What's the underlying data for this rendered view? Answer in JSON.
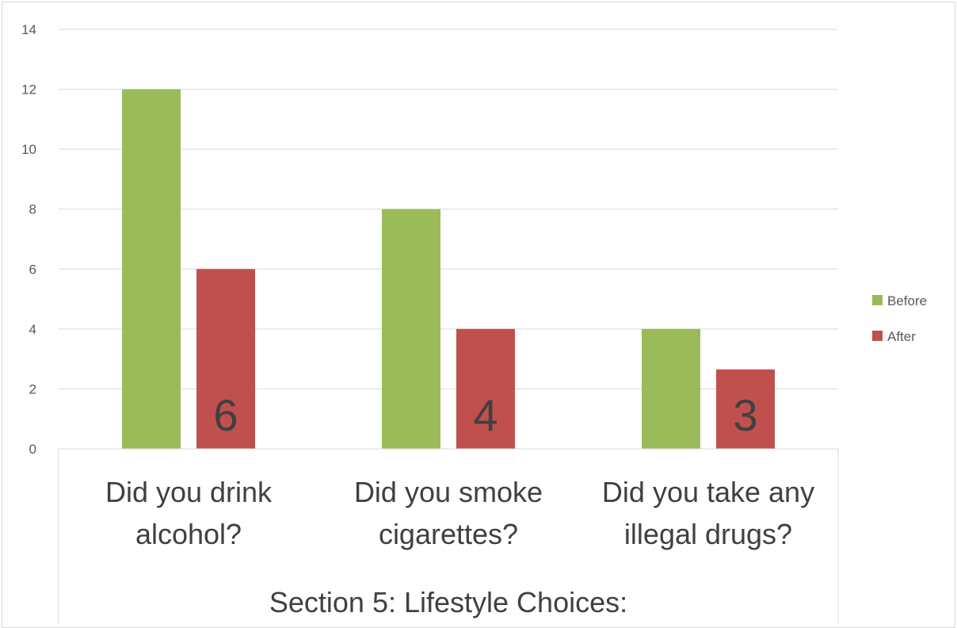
{
  "chart_data": {
    "type": "bar",
    "title": "",
    "xlabel": "Section 5: Lifestyle Choices:",
    "ylabel": "",
    "ylim": [
      0,
      14
    ],
    "yticks": [
      0,
      2,
      4,
      6,
      8,
      10,
      12,
      14
    ],
    "grid": true,
    "legend_position": "right",
    "categories": [
      [
        "Did you drink",
        "alcohol?"
      ],
      [
        "Did you smoke",
        "cigarettes?"
      ],
      [
        "Did you take any",
        "illegal drugs?"
      ]
    ],
    "series": [
      {
        "name": "Before",
        "color": "#9bbb59",
        "values": [
          12,
          8,
          4
        ],
        "data_labels": [
          "",
          "",
          ""
        ]
      },
      {
        "name": "After",
        "color": "#c0504d",
        "values": [
          6,
          4,
          2.65
        ],
        "data_labels": [
          "6",
          "4",
          "3"
        ]
      }
    ]
  }
}
